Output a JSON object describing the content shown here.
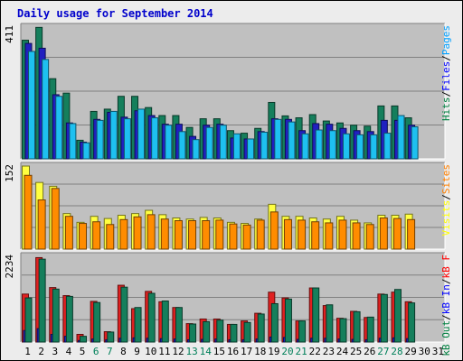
{
  "chart_data": {
    "type": "bar",
    "title": "Daily usage for September 2014",
    "categories": [
      "1",
      "2",
      "3",
      "4",
      "5",
      "6",
      "7",
      "8",
      "9",
      "10",
      "11",
      "12",
      "13",
      "14",
      "15",
      "16",
      "17",
      "18",
      "19",
      "20",
      "21",
      "22",
      "23",
      "24",
      "25",
      "26",
      "27",
      "28",
      "29",
      "30",
      "31"
    ],
    "weekend_days": [
      "6",
      "7",
      "13",
      "14",
      "20",
      "21",
      "27",
      "28"
    ],
    "panels": [
      {
        "id": "hits-files-pages",
        "ymax_label": "411",
        "ylim": [
          0,
          411
        ],
        "legend": [
          {
            "label": "Pages",
            "color": "#00a0ff"
          },
          {
            "label": "Files",
            "color": "#0000ff"
          },
          {
            "label": "Hits",
            "color": "#008040"
          }
        ],
        "series": [
          {
            "name": "Hits",
            "color": "#157f5c",
            "values": [
              370,
              410,
              250,
              205,
              58,
              148,
              155,
              195,
              195,
              160,
              135,
              135,
              98,
              125,
              125,
              88,
              80,
              95,
              176,
              134,
              128,
              138,
              118,
              112,
              105,
              102,
              165,
              165,
              128,
              0,
              0
            ]
          },
          {
            "name": "Files",
            "color": "#2020c0",
            "values": [
              360,
              345,
              200,
              112,
              52,
              123,
              145,
              130,
              150,
              135,
              108,
              108,
              70,
              105,
              108,
              65,
              62,
              85,
              125,
              123,
              88,
              110,
              108,
              95,
              88,
              85,
              120,
              120,
              105,
              0,
              0
            ]
          },
          {
            "name": "Pages",
            "color": "#1ec0f0",
            "values": [
              335,
              310,
              195,
              110,
              50,
              120,
              148,
              125,
              155,
              128,
              105,
              85,
              60,
              98,
              105,
              78,
              62,
              83,
              123,
              115,
              78,
              90,
              88,
              78,
              75,
              75,
              80,
              135,
              100,
              0,
              0
            ]
          }
        ]
      },
      {
        "id": "sites-visits",
        "ymax_label": "152",
        "ylim": [
          0,
          152
        ],
        "legend": [
          {
            "label": "Sites",
            "color": "#ff8000"
          },
          {
            "label": "Visits",
            "color": "#ffff00"
          }
        ],
        "series": [
          {
            "name": "Visits",
            "color": "#ffff40",
            "values": [
              152,
              122,
              115,
              65,
              49,
              60,
              56,
              62,
              65,
              71,
              63,
              57,
              55,
              58,
              57,
              49,
              47,
              55,
              82,
              60,
              60,
              57,
              55,
              60,
              53,
              48,
              62,
              62,
              64,
              0,
              0
            ]
          },
          {
            "name": "Sites",
            "color": "#ff8c00",
            "values": [
              135,
              90,
              111,
              60,
              47,
              50,
              45,
              54,
              59,
              63,
              55,
              52,
              52,
              52,
              53,
              46,
              44,
              53,
              68,
              54,
              53,
              50,
              48,
              53,
              48,
              45,
              57,
              56,
              54,
              0,
              0
            ]
          }
        ]
      },
      {
        "id": "kbf-kbin-kbout",
        "ymax_label": "2234",
        "ylim": [
          0,
          2234
        ],
        "legend": [
          {
            "label": "kB F",
            "color": "#ff0000"
          },
          {
            "label": "kB In",
            "color": "#0000ff"
          },
          {
            "label": "kB Out",
            "color": "#008040"
          }
        ],
        "series": [
          {
            "name": "kB F",
            "color": "#e02020",
            "values": [
              1250,
              2200,
              1420,
              1210,
              200,
              1060,
              270,
              1480,
              870,
              1320,
              1050,
              900,
              480,
              600,
              600,
              460,
              550,
              750,
              1300,
              1150,
              550,
              1410,
              950,
              620,
              800,
              640,
              1250,
              1300,
              1050,
              0,
              0
            ]
          },
          {
            "name": "kB In",
            "color": "#2020c0",
            "values": [
              300,
              350,
              200,
              150,
              40,
              80,
              60,
              100,
              110,
              100,
              90,
              80,
              60,
              70,
              80,
              60,
              60,
              80,
              130,
              120,
              70,
              100,
              100,
              80,
              70,
              60,
              100,
              110,
              90,
              0,
              0
            ]
          },
          {
            "name": "kB Out",
            "color": "#157f5c",
            "values": [
              1150,
              2160,
              1380,
              1190,
              150,
              1030,
              260,
              1430,
              900,
              1270,
              1070,
              900,
              470,
              530,
              570,
              460,
              510,
              730,
              1000,
              1120,
              550,
              1410,
              970,
              610,
              790,
              650,
              1240,
              1370,
              1020,
              0,
              0
            ]
          }
        ]
      }
    ]
  }
}
